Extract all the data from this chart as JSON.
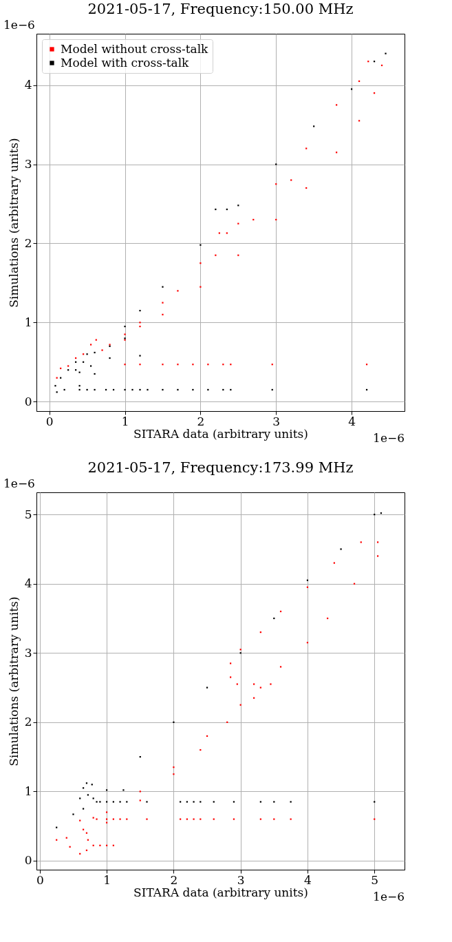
{
  "chart_data": [
    {
      "type": "scatter",
      "title": "2021-05-17, Frequency:150.00 MHz",
      "xlabel": "SITARA data (arbitrary units)",
      "ylabel": "Simulations (arbitrary units)",
      "xlim": [
        -0.17,
        4.7
      ],
      "ylim": [
        -0.12,
        4.65
      ],
      "xticks": [
        0,
        1,
        2,
        3,
        4
      ],
      "yticks": [
        0,
        1,
        2,
        3,
        4
      ],
      "grid": true,
      "legend": "top left",
      "marker": "square",
      "annotations": [
        "1e−6",
        "1e−6"
      ],
      "series": [
        {
          "name": "Model without cross-talk",
          "color": "#ff0000",
          "x": [
            0.1,
            0.15,
            0.25,
            0.35,
            0.45,
            0.55,
            0.62,
            0.8,
            1.0,
            1.2,
            1.5,
            2.0,
            2.5,
            3.0,
            3.4,
            3.8,
            4.1,
            4.22,
            4.4,
            4.3,
            4.1,
            3.8,
            3.4,
            3.0,
            2.5,
            2.0,
            1.5,
            1.0,
            0.7,
            1.2,
            1.7,
            2.2,
            2.7,
            3.2,
            1.0,
            1.2,
            1.5,
            1.7,
            1.9,
            2.1,
            2.3,
            2.4,
            2.95,
            4.2,
            2.25,
            2.35
          ],
          "values": [
            0.3,
            0.42,
            0.45,
            0.55,
            0.6,
            0.72,
            0.78,
            0.72,
            0.85,
            1.0,
            1.25,
            1.75,
            2.25,
            2.75,
            3.2,
            3.75,
            4.05,
            4.3,
            4.25,
            3.9,
            3.55,
            3.15,
            2.7,
            2.3,
            1.85,
            1.45,
            1.1,
            0.78,
            0.65,
            0.95,
            1.4,
            1.85,
            2.3,
            2.8,
            0.47,
            0.47,
            0.47,
            0.47,
            0.47,
            0.47,
            0.47,
            0.47,
            0.47,
            0.47,
            2.13,
            2.13
          ]
        },
        {
          "name": "Model with cross-talk",
          "color": "#000000",
          "x": [
            0.1,
            0.08,
            0.15,
            0.25,
            0.35,
            0.5,
            0.6,
            0.55,
            0.4,
            0.35,
            0.45,
            0.2,
            0.4,
            0.6,
            0.8,
            1.0,
            1.0,
            1.5,
            2.0,
            2.5,
            3.0,
            3.5,
            4.0,
            4.3,
            4.45,
            0.8,
            1.2,
            0.4,
            0.5,
            0.6,
            0.75,
            0.85,
            1.0,
            1.1,
            1.2,
            1.3,
            1.5,
            1.7,
            1.9,
            2.1,
            2.3,
            2.4,
            2.95,
            4.2,
            2.2,
            2.35,
            1.2
          ],
          "values": [
            0.12,
            0.2,
            0.3,
            0.4,
            0.5,
            0.6,
            0.62,
            0.45,
            0.37,
            0.4,
            0.5,
            0.15,
            0.2,
            0.35,
            0.55,
            0.8,
            0.95,
            1.45,
            1.98,
            2.48,
            3.0,
            3.48,
            3.95,
            4.3,
            4.4,
            0.7,
            1.15,
            0.15,
            0.15,
            0.15,
            0.15,
            0.15,
            0.15,
            0.15,
            0.15,
            0.15,
            0.15,
            0.15,
            0.15,
            0.15,
            0.15,
            0.15,
            0.15,
            0.15,
            2.43,
            2.43,
            0.58
          ]
        }
      ]
    },
    {
      "type": "scatter",
      "title": "2021-05-17, Frequency:173.99 MHz",
      "xlabel": "SITARA data (arbitrary units)",
      "ylabel": "Simulations (arbitrary units)",
      "xlim": [
        -0.05,
        5.45
      ],
      "ylim": [
        -0.13,
        5.32
      ],
      "xticks": [
        0,
        1,
        2,
        3,
        4,
        5
      ],
      "yticks": [
        0,
        1,
        2,
        3,
        4,
        5
      ],
      "grid": true,
      "legend": "top left",
      "marker": "square",
      "annotations": [
        "1e−6",
        "1e−6"
      ],
      "series": [
        {
          "name": "Model without cross-talk",
          "color": "#ff0000",
          "x": [
            0.25,
            0.45,
            0.6,
            0.7,
            0.72,
            0.65,
            0.6,
            0.8,
            1.0,
            1.5,
            2.0,
            2.5,
            3.0,
            3.3,
            3.45,
            3.2,
            2.95,
            2.85,
            2.85,
            3.0,
            3.3,
            3.6,
            4.0,
            4.4,
            4.8,
            5.05,
            5.05,
            4.7,
            4.3,
            4.0,
            3.6,
            3.2,
            2.8,
            2.4,
            2.0,
            1.5,
            1.0,
            0.7,
            0.4,
            0.85,
            1.0,
            1.1,
            1.2,
            1.3,
            1.6,
            2.1,
            2.2,
            2.3,
            2.4,
            2.6,
            2.9,
            3.3,
            3.5,
            3.75,
            5.0,
            0.8,
            0.9,
            1.0,
            1.1
          ],
          "values": [
            0.3,
            0.2,
            0.1,
            0.15,
            0.3,
            0.45,
            0.58,
            0.62,
            0.7,
            1.0,
            1.35,
            1.8,
            2.25,
            2.5,
            2.55,
            2.55,
            2.55,
            2.65,
            2.85,
            3.05,
            3.3,
            3.6,
            3.95,
            4.3,
            4.6,
            4.6,
            4.4,
            4.0,
            3.5,
            3.15,
            2.8,
            2.35,
            2.0,
            1.6,
            1.25,
            0.87,
            0.55,
            0.4,
            0.33,
            0.6,
            0.6,
            0.6,
            0.6,
            0.6,
            0.6,
            0.6,
            0.6,
            0.6,
            0.6,
            0.6,
            0.6,
            0.6,
            0.6,
            0.6,
            0.6,
            0.22,
            0.22,
            0.22,
            0.22
          ]
        },
        {
          "name": "Model with cross-talk",
          "color": "#000000",
          "x": [
            0.25,
            0.5,
            0.8,
            1.0,
            1.5,
            2.0,
            2.5,
            3.0,
            3.5,
            4.0,
            4.5,
            5.0,
            5.1,
            0.65,
            0.6,
            0.65,
            0.7,
            0.78,
            0.72,
            0.85,
            0.9,
            1.0,
            1.1,
            1.2,
            1.3,
            1.6,
            2.1,
            2.2,
            2.3,
            2.4,
            2.6,
            2.9,
            3.3,
            3.5,
            3.75,
            5.0,
            1.25
          ],
          "values": [
            0.48,
            0.67,
            0.9,
            1.02,
            1.5,
            2.0,
            2.5,
            3.0,
            3.5,
            4.05,
            4.5,
            5.0,
            5.02,
            0.75,
            0.9,
            1.05,
            1.12,
            1.1,
            0.95,
            0.85,
            0.85,
            0.85,
            0.85,
            0.85,
            0.85,
            0.85,
            0.85,
            0.85,
            0.85,
            0.85,
            0.85,
            0.85,
            0.85,
            0.85,
            0.85,
            0.85,
            1.02
          ]
        }
      ]
    }
  ]
}
